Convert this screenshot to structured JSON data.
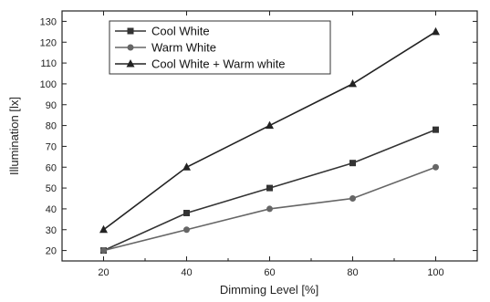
{
  "chart_data": {
    "type": "line",
    "xlabel": "Dimming Level [%]",
    "ylabel": "Illumination [lx]",
    "x": [
      20,
      40,
      60,
      80,
      100
    ],
    "xlim": [
      10,
      110
    ],
    "ylim": [
      15,
      135
    ],
    "xticks": [
      "20",
      "40",
      "60",
      "80",
      "100"
    ],
    "yticks": [
      "20",
      "30",
      "40",
      "50",
      "60",
      "70",
      "80",
      "90",
      "100",
      "110",
      "120",
      "130"
    ],
    "grid": false,
    "legend_position": "top-left",
    "series": [
      {
        "name": "Cool White",
        "marker": "square",
        "color": "#333333",
        "values": [
          20,
          38,
          50,
          62,
          78
        ]
      },
      {
        "name": "Warm White",
        "marker": "circle",
        "color": "#666666",
        "values": [
          20,
          30,
          40,
          45,
          60
        ]
      },
      {
        "name": "Cool White + Warm white",
        "marker": "triangle",
        "color": "#222222",
        "values": [
          30,
          60,
          80,
          100,
          125
        ]
      }
    ]
  }
}
